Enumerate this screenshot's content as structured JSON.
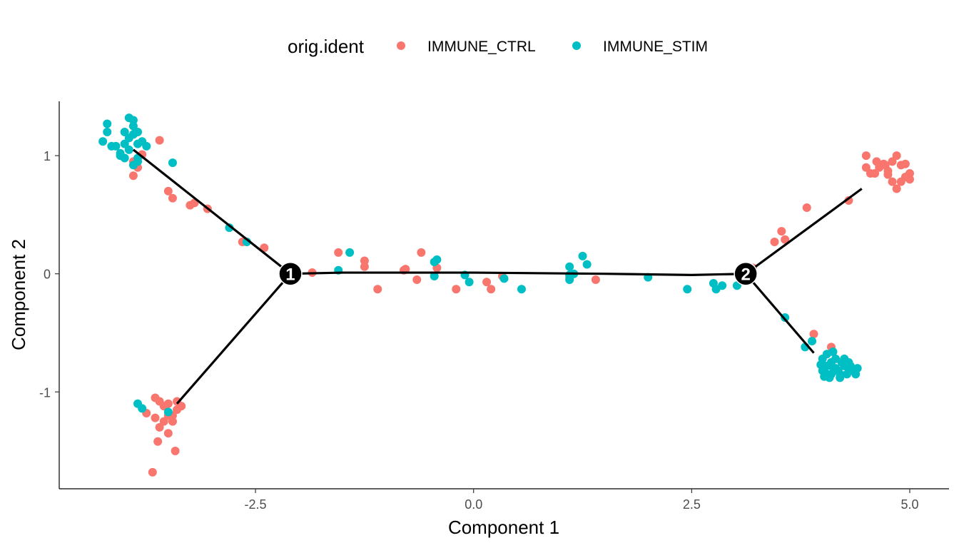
{
  "chart_data": {
    "type": "scatter",
    "xlabel": "Component 1",
    "ylabel": "Component 2",
    "xlim": [
      -4.75,
      5.45
    ],
    "ylim": [
      -1.82,
      1.46
    ],
    "xticks": [
      -2.5,
      0.0,
      2.5,
      5.0
    ],
    "xtick_labels": [
      "-2.5",
      "0.0",
      "2.5",
      "5.0"
    ],
    "yticks": [
      -1,
      0,
      1
    ],
    "ytick_labels": [
      "-1",
      "0",
      "1"
    ],
    "grid": false,
    "legend": {
      "title": "orig.ident",
      "placement": "top",
      "entries": [
        {
          "label": "IMMUNE_CTRL",
          "color": "#F8766D"
        },
        {
          "label": "IMMUNE_STIM",
          "color": "#00BFC4"
        }
      ]
    },
    "trajectory": {
      "branches": [
        [
          [
            -2.1,
            0.0
          ],
          [
            -3.9,
            1.05
          ]
        ],
        [
          [
            -2.1,
            0.0
          ],
          [
            -3.4,
            -1.1
          ]
        ],
        [
          [
            -2.1,
            0.0
          ],
          [
            -1.5,
            0.01
          ],
          [
            0.0,
            0.01
          ],
          [
            1.5,
            0.0
          ],
          [
            2.5,
            -0.01
          ],
          [
            3.12,
            0.0
          ]
        ],
        [
          [
            3.12,
            0.0
          ],
          [
            4.45,
            0.72
          ]
        ],
        [
          [
            3.12,
            0.0
          ],
          [
            3.9,
            -0.67
          ]
        ]
      ],
      "nodes": [
        {
          "label": "1",
          "x": -2.1,
          "y": 0.0
        },
        {
          "label": "2",
          "x": 3.12,
          "y": 0.0
        }
      ]
    },
    "series": [
      {
        "name": "IMMUNE_CTRL",
        "color": "#F8766D",
        "points": [
          [
            -3.6,
            1.13
          ],
          [
            -3.8,
            1.01
          ],
          [
            -3.9,
            0.95
          ],
          [
            -3.85,
            0.9
          ],
          [
            -3.9,
            0.83
          ],
          [
            -3.5,
            0.7
          ],
          [
            -3.45,
            0.64
          ],
          [
            -3.25,
            0.58
          ],
          [
            -3.2,
            0.6
          ],
          [
            -3.05,
            0.55
          ],
          [
            -2.65,
            0.27
          ],
          [
            -2.4,
            0.22
          ],
          [
            -3.75,
            -1.18
          ],
          [
            -3.65,
            -1.22
          ],
          [
            -3.6,
            -1.3
          ],
          [
            -3.5,
            -1.35
          ],
          [
            -3.55,
            -1.25
          ],
          [
            -3.45,
            -1.2
          ],
          [
            -3.4,
            -1.15
          ],
          [
            -3.5,
            -1.1
          ],
          [
            -3.6,
            -1.08
          ],
          [
            -3.65,
            -1.05
          ],
          [
            -3.55,
            -1.12
          ],
          [
            -3.4,
            -1.08
          ],
          [
            -3.35,
            -1.12
          ],
          [
            -3.45,
            -1.25
          ],
          [
            -3.62,
            -1.42
          ],
          [
            -3.5,
            -1.2
          ],
          [
            -3.42,
            -1.5
          ],
          [
            -3.68,
            -1.68
          ],
          [
            -1.85,
            0.01
          ],
          [
            -1.55,
            0.18
          ],
          [
            -1.25,
            0.11
          ],
          [
            -1.25,
            0.06
          ],
          [
            -1.1,
            -0.13
          ],
          [
            -0.8,
            0.03
          ],
          [
            -0.78,
            0.04
          ],
          [
            -0.65,
            -0.05
          ],
          [
            -0.6,
            0.18
          ],
          [
            -0.42,
            0.05
          ],
          [
            -0.2,
            -0.13
          ],
          [
            0.15,
            -0.07
          ],
          [
            0.2,
            -0.13
          ],
          [
            0.33,
            -0.02
          ],
          [
            1.1,
            -0.03
          ],
          [
            1.4,
            -0.05
          ],
          [
            3.2,
            0.05
          ],
          [
            3.45,
            0.27
          ],
          [
            3.53,
            0.36
          ],
          [
            3.57,
            0.29
          ],
          [
            3.82,
            0.56
          ],
          [
            4.3,
            0.62
          ],
          [
            4.5,
            1.0
          ],
          [
            4.6,
            0.85
          ],
          [
            4.65,
            0.9
          ],
          [
            4.7,
            0.93
          ],
          [
            4.75,
            0.87
          ],
          [
            4.8,
            0.95
          ],
          [
            4.85,
            1.0
          ],
          [
            4.9,
            0.92
          ],
          [
            4.95,
            0.93
          ],
          [
            4.95,
            0.82
          ],
          [
            5.0,
            0.85
          ],
          [
            4.9,
            0.78
          ],
          [
            4.85,
            0.72
          ],
          [
            4.8,
            0.78
          ],
          [
            4.75,
            0.84
          ],
          [
            4.55,
            0.85
          ],
          [
            4.5,
            0.9
          ],
          [
            4.62,
            0.95
          ],
          [
            4.72,
            0.92
          ],
          [
            5.0,
            0.8
          ],
          [
            3.9,
            -0.51
          ],
          [
            4.1,
            -0.62
          ]
        ]
      },
      {
        "name": "IMMUNE_STIM",
        "color": "#00BFC4",
        "points": [
          [
            -4.25,
            1.12
          ],
          [
            -4.2,
            1.2
          ],
          [
            -4.2,
            1.27
          ],
          [
            -4.15,
            1.08
          ],
          [
            -4.1,
            1.08
          ],
          [
            -4.05,
            1.0
          ],
          [
            -4.0,
            1.2
          ],
          [
            -4.0,
            1.1
          ],
          [
            -3.95,
            1.15
          ],
          [
            -3.95,
            1.32
          ],
          [
            -3.9,
            1.3
          ],
          [
            -3.9,
            1.25
          ],
          [
            -3.85,
            1.2
          ],
          [
            -3.85,
            1.1
          ],
          [
            -3.95,
            1.05
          ],
          [
            -4.0,
            0.98
          ],
          [
            -3.85,
            0.95
          ],
          [
            -3.9,
            1.18
          ],
          [
            -3.8,
            1.12
          ],
          [
            -3.75,
            1.08
          ],
          [
            -3.9,
            0.92
          ],
          [
            -3.85,
            0.98
          ],
          [
            -4.05,
            1.02
          ],
          [
            -3.45,
            0.94
          ],
          [
            -2.8,
            0.39
          ],
          [
            -2.6,
            0.27
          ],
          [
            -3.85,
            -1.1
          ],
          [
            -3.8,
            -1.14
          ],
          [
            -3.5,
            -1.17
          ],
          [
            -1.55,
            0.03
          ],
          [
            -1.42,
            0.18
          ],
          [
            -0.45,
            0.1
          ],
          [
            -0.42,
            0.12
          ],
          [
            -0.45,
            -0.02
          ],
          [
            -0.1,
            -0.01
          ],
          [
            -0.05,
            -0.07
          ],
          [
            0.35,
            -0.04
          ],
          [
            0.55,
            -0.13
          ],
          [
            1.1,
            0.06
          ],
          [
            1.1,
            -0.01
          ],
          [
            1.1,
            -0.05
          ],
          [
            1.15,
            0.0
          ],
          [
            1.25,
            0.15
          ],
          [
            1.3,
            0.08
          ],
          [
            2.0,
            -0.03
          ],
          [
            2.45,
            -0.13
          ],
          [
            2.75,
            -0.08
          ],
          [
            2.78,
            -0.13
          ],
          [
            2.85,
            -0.1
          ],
          [
            3.02,
            -0.1
          ],
          [
            3.57,
            -0.37
          ],
          [
            3.8,
            -0.62
          ],
          [
            3.88,
            -0.57
          ],
          [
            4.0,
            -0.82
          ],
          [
            4.05,
            -0.78
          ],
          [
            4.1,
            -0.75
          ],
          [
            4.15,
            -0.8
          ],
          [
            4.2,
            -0.85
          ],
          [
            4.25,
            -0.78
          ],
          [
            4.3,
            -0.8
          ],
          [
            4.35,
            -0.82
          ],
          [
            4.4,
            -0.8
          ],
          [
            4.0,
            -0.72
          ],
          [
            4.05,
            -0.68
          ],
          [
            4.1,
            -0.85
          ],
          [
            4.15,
            -0.72
          ],
          [
            4.2,
            -0.88
          ],
          [
            4.25,
            -0.72
          ],
          [
            4.28,
            -0.85
          ],
          [
            4.3,
            -0.75
          ],
          [
            4.02,
            -0.87
          ],
          [
            4.08,
            -0.88
          ],
          [
            4.12,
            -0.66
          ],
          [
            4.18,
            -0.82
          ],
          [
            4.22,
            -0.75
          ],
          [
            4.32,
            -0.78
          ],
          [
            4.38,
            -0.85
          ],
          [
            4.1,
            -0.78
          ],
          [
            4.05,
            -0.85
          ],
          [
            3.98,
            -0.77
          ]
        ]
      }
    ]
  }
}
